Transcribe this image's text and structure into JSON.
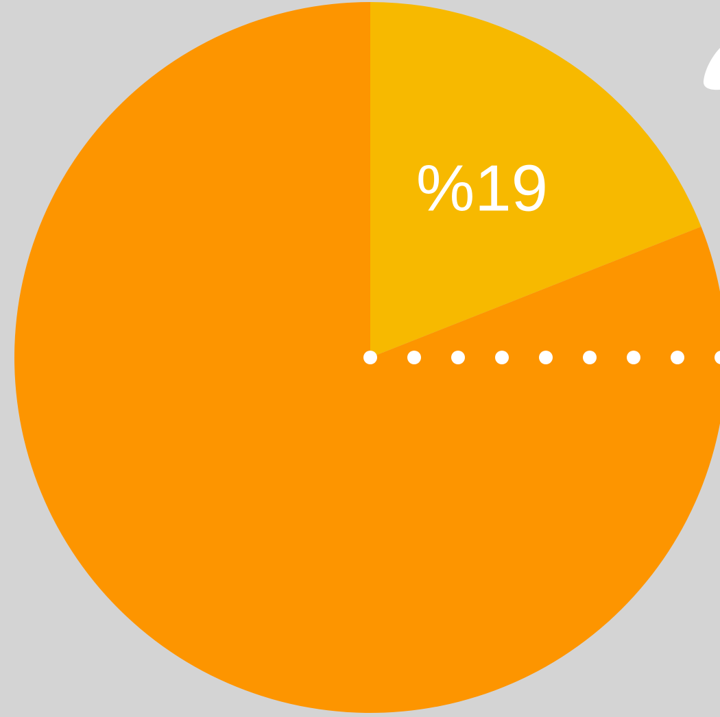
{
  "chart_data": {
    "type": "pie",
    "values": [
      19,
      81
    ],
    "value_labels": [
      "%19",
      null
    ],
    "colors": [
      "#f7b900",
      "#fd9500"
    ]
  }
}
